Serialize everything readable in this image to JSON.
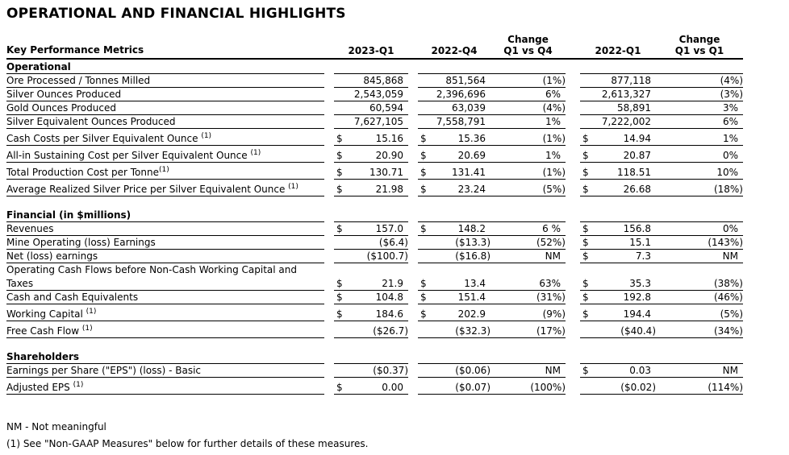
{
  "title": "OPERATIONAL AND FINANCIAL HIGHLIGHTS",
  "table": {
    "headers": {
      "metrics": "Key Performance Metrics",
      "col_2023_q1": "2023-Q1",
      "col_2022_q4": "2022-Q4",
      "change_label_1": "Change",
      "change_sub_1": "Q1 vs Q4",
      "col_2022_q1": "2022-Q1",
      "change_label_2": "Change",
      "change_sub_2": "Q1 vs Q1"
    },
    "rows": [
      {
        "type": "section",
        "label": "Operational"
      },
      {
        "type": "data",
        "label": "Ore Processed / Tonnes Milled",
        "cells": [
          "",
          "845,868",
          "",
          "851,564",
          "(1%)",
          "",
          "877,118",
          "(4%)"
        ]
      },
      {
        "type": "data",
        "label": "Silver Ounces Produced",
        "cells": [
          "",
          "2,543,059",
          "",
          "2,396,696",
          "6%",
          "",
          "2,613,327",
          "(3%)"
        ]
      },
      {
        "type": "data",
        "label": "Gold Ounces Produced",
        "cells": [
          "",
          "60,594",
          "",
          "63,039",
          "(4%)",
          "",
          "58,891",
          "3%"
        ]
      },
      {
        "type": "data",
        "label": "Silver Equivalent Ounces Produced",
        "cells": [
          "",
          "7,627,105",
          "",
          "7,558,791",
          "1%",
          "",
          "7,222,002",
          "6%"
        ]
      },
      {
        "type": "data",
        "label": "Cash Costs per Silver Equivalent Ounce ",
        "sup": "(1)",
        "cells": [
          "$",
          "15.16",
          "$",
          "15.36",
          "(1%)",
          "$",
          "14.94",
          "1%"
        ]
      },
      {
        "type": "data",
        "label": "All-in Sustaining Cost per Silver Equivalent Ounce ",
        "sup": "(1)",
        "cells": [
          "$",
          "20.90",
          "$",
          "20.69",
          "1%",
          "$",
          "20.87",
          "0%"
        ]
      },
      {
        "type": "data",
        "label": "Total Production Cost per Tonne",
        "sup": "(1)",
        "cells": [
          "$",
          "130.71",
          "$",
          "131.41",
          "(1%)",
          "$",
          "118.51",
          "10%"
        ]
      },
      {
        "type": "data",
        "label": "Average Realized Silver Price per Silver Equivalent Ounce ",
        "sup": "(1)",
        "cells": [
          "$",
          "21.98",
          "$",
          "23.24",
          "(5%)",
          "$",
          "26.68",
          "(18%)"
        ]
      },
      {
        "type": "spacer"
      },
      {
        "type": "section",
        "label": "Financial (in $millions)"
      },
      {
        "type": "data",
        "label": "Revenues",
        "cells": [
          "$",
          "157.0",
          "$",
          "148.2",
          "6 %",
          "$",
          "156.8",
          "0%"
        ]
      },
      {
        "type": "data",
        "label": "Mine Operating (loss) Earnings",
        "cells": [
          "",
          "($6.4)",
          "",
          "($13.3)",
          "(52%)",
          "$",
          "15.1",
          "(143%)"
        ]
      },
      {
        "type": "data",
        "label": "Net (loss) earnings",
        "cells": [
          "",
          "($100.7)",
          "",
          "($16.8)",
          "NM",
          "$",
          "7.3",
          "NM"
        ]
      },
      {
        "type": "labelonly",
        "label": "Operating Cash Flows before Non-Cash Working Capital and"
      },
      {
        "type": "data",
        "label": "Taxes",
        "cells": [
          "$",
          "21.9",
          "$",
          "13.4",
          "63%",
          "$",
          "35.3",
          "(38%)"
        ]
      },
      {
        "type": "data",
        "label": "Cash and Cash Equivalents",
        "cells": [
          "$",
          "104.8",
          "$",
          "151.4",
          "(31%)",
          "$",
          "192.8",
          "(46%)"
        ]
      },
      {
        "type": "data",
        "label": "Working Capital ",
        "sup": "(1)",
        "cells": [
          "$",
          "184.6",
          "$",
          "202.9",
          "(9%)",
          "$",
          "194.4",
          "(5%)"
        ]
      },
      {
        "type": "data",
        "label": "Free Cash Flow ",
        "sup": "(1)",
        "cells": [
          "",
          "($26.7)",
          "",
          "($32.3)",
          "(17%)",
          "",
          "($40.4)",
          "(34%)"
        ]
      },
      {
        "type": "spacer"
      },
      {
        "type": "section",
        "label": "Shareholders"
      },
      {
        "type": "data",
        "label": "Earnings per Share (\"EPS\") (loss) - Basic",
        "cells": [
          "",
          "($0.37)",
          "",
          "($0.06)",
          "NM",
          "$",
          "0.03",
          "NM"
        ]
      },
      {
        "type": "data",
        "label": "Adjusted EPS ",
        "sup": "(1)",
        "cells": [
          "$",
          "0.00",
          "",
          "($0.07)",
          "(100%)",
          "",
          "($0.02)",
          "(114%)"
        ]
      }
    ]
  },
  "notes": [
    "NM - Not meaningful",
    "(1) See \"Non-GAAP Measures\" below for further details of these measures."
  ]
}
